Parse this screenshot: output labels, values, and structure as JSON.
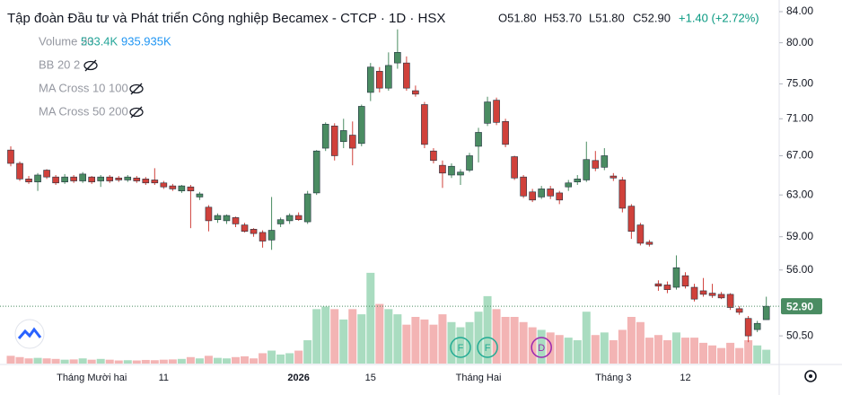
{
  "chart_data": {
    "type": "candlestick",
    "title": "Tập đoàn Đầu tư và Phát triển Công nghiệp Becamex - CTCP · 1D · HSX",
    "ohlc_header": [
      "O51.80",
      "H53.70",
      "L51.80",
      "C52.90",
      "+1.40 (+2.72%)"
    ],
    "indicators": [
      {
        "name": "Volume 20",
        "values": [
          "533.4K",
          "935.935K"
        ]
      },
      {
        "name": "BB 20 2"
      },
      {
        "name": "MA Cross 10 100"
      },
      {
        "name": "MA Cross 50 200"
      }
    ],
    "categories": [
      null,
      null,
      null,
      null,
      null,
      null,
      null,
      null,
      null,
      "Tháng Mười hai",
      null,
      null,
      null,
      null,
      null,
      null,
      null,
      "11",
      null,
      null,
      null,
      null,
      null,
      null,
      null,
      null,
      null,
      null,
      null,
      null,
      null,
      null,
      "2026",
      null,
      null,
      null,
      null,
      null,
      null,
      null,
      "15",
      null,
      null,
      null,
      null,
      null,
      null,
      null,
      null,
      null,
      null,
      null,
      "Tháng Hai",
      null,
      null,
      null,
      null,
      null,
      null,
      null,
      null,
      null,
      null,
      null,
      null,
      null,
      null,
      "Tháng 3",
      null,
      null,
      null,
      null,
      null,
      null,
      null,
      "12",
      null,
      null,
      null,
      null,
      null,
      null,
      null,
      null,
      null
    ],
    "open": [
      67.6,
      66.2,
      64.6,
      64.3,
      65.5,
      64.8,
      64.3,
      64.8,
      64.4,
      64.8,
      64.4,
      64.8,
      64.7,
      64.5,
      64.7,
      64.6,
      64.5,
      64.2,
      63.9,
      63.4,
      63.8,
      62.8,
      61.8,
      60.6,
      60.5,
      60.8,
      60.1,
      59.7,
      59.4,
      58.7,
      60.2,
      60.5,
      61.0,
      60.4,
      63.2,
      67.8,
      70.2,
      68.5,
      69.2,
      68.3,
      74.0,
      76.5,
      74.5,
      77.5,
      77.5,
      74.2,
      72.6,
      67.5,
      66.0,
      65.0,
      65.0,
      65.5,
      68.0,
      70.5,
      73.1,
      70.7,
      66.9,
      64.8,
      63.3,
      62.8,
      63.6,
      63.2,
      63.8,
      64.3,
      64.5,
      66.5,
      65.8,
      64.9,
      64.5,
      61.9,
      60.1,
      58.5,
      54.8,
      54.7,
      54.5,
      55.5,
      54.5,
      54.2,
      54.0,
      53.9,
      53.9,
      52.7,
      51.9,
      51.0,
      51.8
    ],
    "high": [
      68.0,
      66.4,
      64.9,
      65.2,
      65.6,
      65.0,
      65.1,
      65.0,
      65.3,
      64.9,
      65.0,
      65.0,
      64.9,
      65.0,
      64.9,
      64.8,
      65.7,
      64.4,
      64.1,
      64.0,
      64.0,
      63.3,
      62.0,
      61.2,
      61.1,
      60.9,
      60.3,
      59.8,
      59.6,
      62.8,
      60.8,
      61.2,
      61.3,
      63.4,
      67.6,
      70.6,
      70.5,
      71.0,
      70.7,
      72.6,
      77.5,
      77.0,
      78.8,
      81.7,
      78.3,
      74.8,
      72.9,
      67.8,
      66.5,
      66.2,
      65.6,
      67.3,
      70.0,
      73.5,
      73.4,
      71.0,
      67.0,
      65.0,
      63.6,
      63.9,
      63.9,
      63.4,
      64.5,
      65.0,
      68.5,
      67.5,
      67.8,
      65.2,
      64.8,
      62.1,
      60.3,
      58.7,
      55.1,
      55.0,
      57.3,
      55.8,
      54.8,
      55.3,
      54.8,
      54.1,
      54.0,
      52.9,
      52.1,
      51.7,
      53.7
    ],
    "low": [
      65.9,
      64.4,
      64.1,
      63.4,
      64.6,
      64.0,
      64.1,
      64.2,
      64.2,
      64.1,
      63.8,
      64.2,
      64.3,
      64.3,
      64.2,
      64.0,
      64.0,
      63.6,
      63.4,
      63.2,
      59.8,
      62.5,
      59.5,
      60.3,
      60.2,
      59.9,
      59.4,
      59.0,
      58.0,
      57.8,
      59.9,
      60.2,
      60.5,
      60.2,
      63.0,
      67.5,
      66.5,
      67.8,
      66.0,
      68.0,
      73.0,
      74.0,
      74.2,
      76.8,
      74.2,
      73.5,
      67.8,
      66.2,
      63.7,
      64.7,
      64.0,
      65.3,
      66.3,
      70.2,
      70.3,
      67.9,
      64.5,
      62.7,
      62.3,
      62.6,
      62.6,
      62.1,
      63.4,
      64.0,
      64.3,
      65.4,
      65.5,
      64.4,
      61.3,
      58.8,
      58.2,
      58.1,
      54.2,
      54.0,
      54.3,
      54.4,
      53.3,
      53.7,
      53.6,
      53.5,
      52.6,
      52.2,
      50.0,
      50.8,
      51.8
    ],
    "close": [
      66.2,
      64.6,
      64.3,
      65.0,
      64.8,
      64.2,
      64.8,
      64.4,
      65.1,
      64.3,
      64.8,
      64.4,
      64.5,
      64.8,
      64.4,
      64.2,
      64.2,
      63.8,
      63.6,
      63.9,
      63.4,
      63.1,
      60.5,
      61.0,
      61.0,
      60.2,
      59.5,
      59.3,
      58.6,
      59.6,
      60.6,
      61.0,
      60.6,
      63.1,
      67.5,
      70.4,
      67.0,
      69.7,
      67.8,
      72.4,
      77.0,
      74.5,
      77.2,
      78.8,
      74.5,
      73.8,
      68.2,
      66.5,
      65.2,
      65.9,
      65.3,
      67.0,
      69.5,
      72.9,
      70.6,
      68.2,
      64.7,
      62.9,
      62.5,
      63.6,
      62.9,
      62.5,
      64.2,
      64.6,
      66.6,
      65.7,
      67.0,
      64.7,
      61.7,
      59.5,
      58.4,
      58.3,
      54.6,
      54.3,
      56.2,
      54.6,
      53.5,
      53.9,
      53.8,
      53.6,
      52.8,
      52.4,
      50.5,
      51.5,
      52.9
    ],
    "volume": [
      300,
      250,
      200,
      220,
      200,
      180,
      150,
      160,
      200,
      150,
      180,
      150,
      120,
      130,
      120,
      140,
      130,
      150,
      160,
      180,
      250,
      200,
      300,
      220,
      200,
      250,
      280,
      200,
      400,
      500,
      350,
      400,
      500,
      900,
      2100,
      2200,
      2100,
      1700,
      2100,
      1900,
      3500,
      2300,
      2100,
      1900,
      1500,
      1800,
      1700,
      1500,
      1900,
      1600,
      1400,
      1600,
      2000,
      2600,
      2100,
      1800,
      1800,
      1600,
      1400,
      1300,
      1200,
      1100,
      1000,
      900,
      2000,
      1100,
      1200,
      900,
      1300,
      1800,
      1600,
      1000,
      1100,
      900,
      1200,
      1000,
      1000,
      800,
      700,
      600,
      800,
      600,
      900,
      700,
      533.4
    ],
    "up_color": "#4a8c62",
    "down_color": "#d0413b",
    "volume_up_color": "#a9dcc0",
    "volume_down_color": "#f3b4b4",
    "volume_lim": [
      0,
      3600
    ],
    "ylim": [
      48.35,
      84.95
    ],
    "log": true,
    "grid": false,
    "yticks": [
      {
        "value": 84,
        "label": "84.00"
      },
      {
        "value": 80,
        "label": "80.00"
      },
      {
        "value": 75,
        "label": "75.00"
      },
      {
        "value": 71,
        "label": "71.00"
      },
      {
        "value": 67,
        "label": "67.00"
      },
      {
        "value": 63,
        "label": "63.00"
      },
      {
        "value": 59,
        "label": "59.00"
      },
      {
        "value": 56,
        "label": "56.00"
      },
      {
        "value": 50.5,
        "label": "50.50"
      }
    ],
    "last_price": {
      "value": 52.9,
      "label": "52.90"
    },
    "events": [
      {
        "index": 50,
        "label": "F"
      },
      {
        "index": 53,
        "label": "F"
      },
      {
        "index": 59,
        "label": "D"
      }
    ]
  }
}
